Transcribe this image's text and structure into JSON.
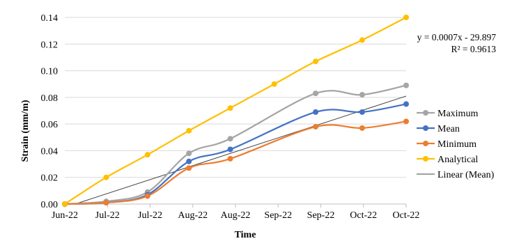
{
  "chart_data": {
    "type": "line",
    "title": "",
    "xlabel": "Time",
    "ylabel": "Strain (mm/m)",
    "x_ticks": [
      "Jun-22",
      "Jul-22",
      "Jul-22",
      "Aug-22",
      "Aug-22",
      "Sep-22",
      "Sep-22",
      "Oct-22",
      "Oct-22"
    ],
    "y_ticks": [
      "0.00",
      "0.02",
      "0.04",
      "0.06",
      "0.08",
      "0.10",
      "0.12",
      "0.14"
    ],
    "ylim": [
      0,
      0.14
    ],
    "xlim": [
      "2022-06-08",
      "2022-10-18"
    ],
    "grid": "horizontal",
    "legend_position": "right",
    "series": [
      {
        "name": "Maximum",
        "color": "#a5a5a5",
        "marker": true,
        "x": [
          "2022-06-08",
          "2022-06-24",
          "2022-07-10",
          "2022-07-26",
          "2022-08-11",
          "2022-09-13",
          "2022-10-01",
          "2022-10-18"
        ],
        "y": [
          0.0,
          0.002,
          0.009,
          0.038,
          0.049,
          0.083,
          0.082,
          0.089
        ]
      },
      {
        "name": "Mean",
        "color": "#4472c4",
        "marker": true,
        "x": [
          "2022-06-08",
          "2022-06-24",
          "2022-07-10",
          "2022-07-26",
          "2022-08-11",
          "2022-09-13",
          "2022-10-01",
          "2022-10-18"
        ],
        "y": [
          0.0,
          0.001,
          0.007,
          0.032,
          0.041,
          0.069,
          0.069,
          0.075
        ]
      },
      {
        "name": "Minimum",
        "color": "#ed7d31",
        "marker": true,
        "x": [
          "2022-06-08",
          "2022-06-24",
          "2022-07-10",
          "2022-07-26",
          "2022-08-11",
          "2022-09-13",
          "2022-10-01",
          "2022-10-18"
        ],
        "y": [
          0.0,
          0.001,
          0.006,
          0.027,
          0.034,
          0.058,
          0.057,
          0.062
        ]
      },
      {
        "name": "Analytical",
        "color": "#ffc000",
        "marker": true,
        "x": [
          "2022-06-08",
          "2022-06-24",
          "2022-07-10",
          "2022-07-26",
          "2022-08-11",
          "2022-08-28",
          "2022-09-13",
          "2022-10-01",
          "2022-10-18"
        ],
        "y": [
          0.0,
          0.02,
          0.037,
          0.055,
          0.072,
          0.09,
          0.107,
          0.123,
          0.14
        ]
      },
      {
        "name": "Linear (Mean)",
        "color": "#404040",
        "marker": false,
        "x": [
          "2022-06-12",
          "2022-10-18"
        ],
        "y": [
          0.0,
          0.081
        ]
      }
    ],
    "trendline": {
      "equation": "y = 0.0007x - 29.897",
      "r_squared": "R² = 0.9613"
    }
  }
}
